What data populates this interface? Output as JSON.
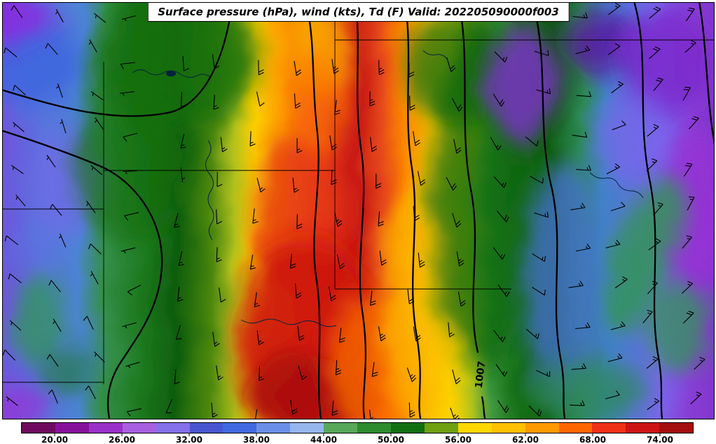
{
  "figure": {
    "title": "Surface pressure (hPa), wind (kts), Td (F) Valid: 202205090000f003"
  },
  "chart_data": {
    "type": "heatmap",
    "title": "Surface pressure (hPa), wind (kts), Td (F) Valid: 202205090000f003",
    "shaded_field": {
      "name": "dewpoint-temperature",
      "unit": "F"
    },
    "overlays": [
      {
        "name": "surface-pressure",
        "unit": "hPa",
        "style": "thick black contour lines",
        "labeled_contours": [
          "1007"
        ]
      },
      {
        "name": "wind",
        "unit": "kts",
        "style": "wind barbs"
      },
      {
        "name": "state-borders",
        "style": "thin black lines"
      }
    ],
    "pressure_contour_label": "1007",
    "colorbar": {
      "orientation": "horizontal",
      "value_min": 17,
      "value_max": 77,
      "segment_step": 3,
      "tick_values": [
        20,
        26,
        32,
        38,
        44,
        50,
        56,
        62,
        68,
        74
      ],
      "tick_labels": [
        "20.00",
        "26.00",
        "32.00",
        "38.00",
        "44.00",
        "50.00",
        "56.00",
        "62.00",
        "68.00",
        "74.00"
      ],
      "segment_colors": [
        "#6e0a5e",
        "#87109b",
        "#9b30c8",
        "#a860e0",
        "#8470e8",
        "#4756d0",
        "#4169e1",
        "#6a8fe8",
        "#96b6ee",
        "#58a85a",
        "#2e8b2e",
        "#116e11",
        "#6fa010",
        "#ffd700",
        "#ffc000",
        "#ff9900",
        "#ff6600",
        "#f03018",
        "#cc1414",
        "#a40e0e"
      ]
    },
    "west_to_east_td_profile_F": [
      {
        "x_frac": 0.0,
        "td_F": 30
      },
      {
        "x_frac": 0.1,
        "td_F": 36
      },
      {
        "x_frac": 0.18,
        "td_F": 47
      },
      {
        "x_frac": 0.26,
        "td_F": 52
      },
      {
        "x_frac": 0.34,
        "td_F": 58
      },
      {
        "x_frac": 0.42,
        "td_F": 66
      },
      {
        "x_frac": 0.48,
        "td_F": 73
      },
      {
        "x_frac": 0.56,
        "td_F": 63
      },
      {
        "x_frac": 0.62,
        "td_F": 57
      },
      {
        "x_frac": 0.72,
        "td_F": 50
      },
      {
        "x_frac": 0.82,
        "td_F": 40
      },
      {
        "x_frac": 0.9,
        "td_F": 31
      },
      {
        "x_frac": 1.0,
        "td_F": 27
      }
    ],
    "wind_field_control_points": [
      {
        "x_frac": 0.0,
        "dir_deg": 310,
        "speed_kts": 7
      },
      {
        "x_frac": 0.12,
        "dir_deg": 340,
        "speed_kts": 6
      },
      {
        "x_frac": 0.25,
        "dir_deg": 185,
        "speed_kts": 10
      },
      {
        "x_frac": 0.4,
        "dir_deg": 175,
        "speed_kts": 18
      },
      {
        "x_frac": 0.52,
        "dir_deg": 180,
        "speed_kts": 24
      },
      {
        "x_frac": 0.62,
        "dir_deg": 165,
        "speed_kts": 20
      },
      {
        "x_frac": 0.72,
        "dir_deg": 135,
        "speed_kts": 15
      },
      {
        "x_frac": 0.82,
        "dir_deg": 75,
        "speed_kts": 14
      },
      {
        "x_frac": 0.92,
        "dir_deg": 45,
        "speed_kts": 16
      },
      {
        "x_frac": 1.0,
        "dir_deg": 35,
        "speed_kts": 18
      }
    ]
  }
}
